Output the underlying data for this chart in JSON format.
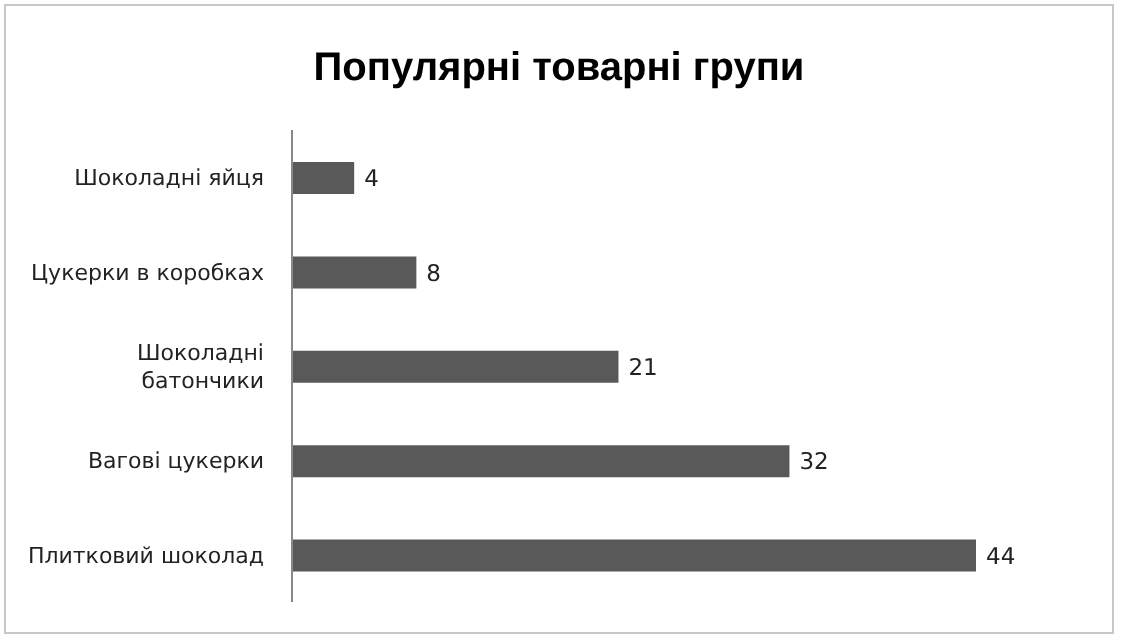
{
  "chart_data": {
    "type": "bar",
    "orientation": "horizontal",
    "title": "Популярні товарні групи",
    "categories": [
      "Шоколадні яйця",
      "Цукерки в коробках",
      "Шоколадні батончики",
      "Вагові цукерки",
      "Плитковий шоколад"
    ],
    "values": [
      4,
      8,
      21,
      32,
      44
    ],
    "color": "#595959",
    "data_labels": true,
    "tick_labels": "y"
  }
}
